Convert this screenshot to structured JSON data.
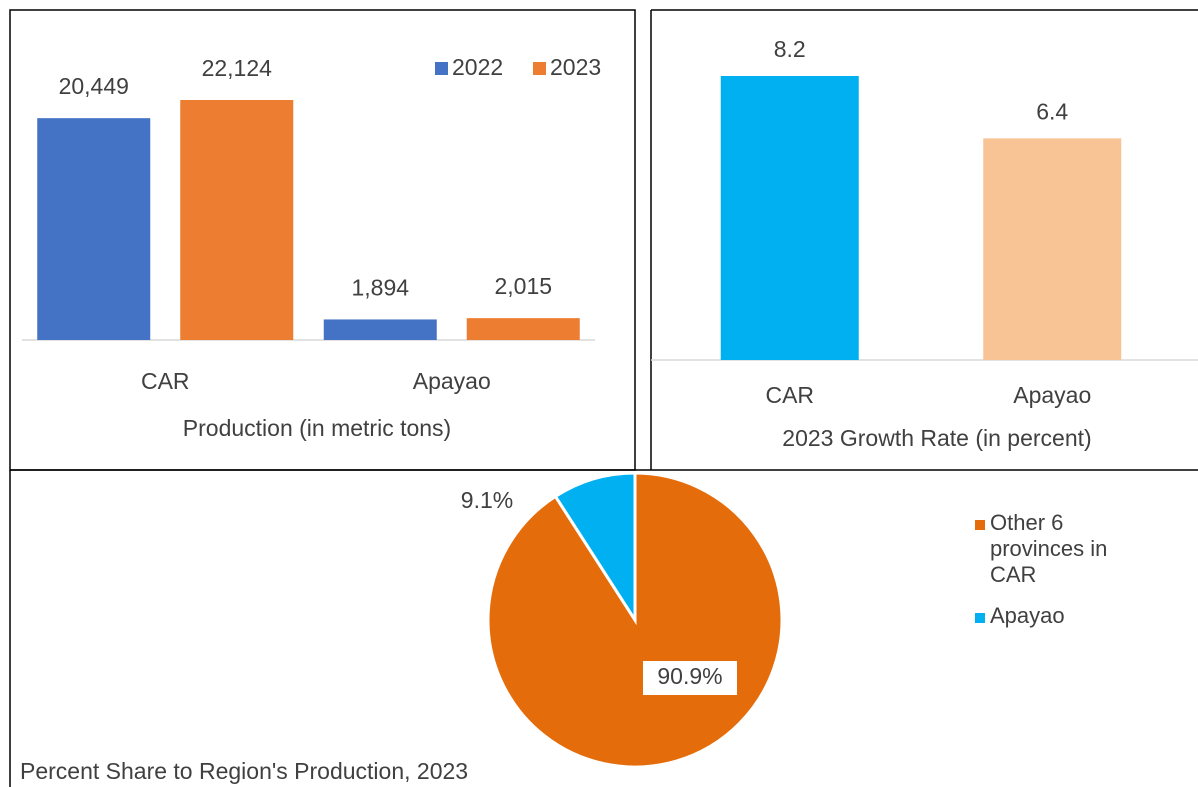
{
  "chart_data": [
    {
      "type": "bar",
      "title": "Production (in metric tons)",
      "categories": [
        "CAR",
        "Apayao"
      ],
      "series": [
        {
          "name": "2022",
          "color": "#4472c4",
          "values": [
            20449,
            1894
          ],
          "value_labels": [
            "20,449",
            "1,894"
          ]
        },
        {
          "name": "2023",
          "color": "#ed7d31",
          "values": [
            22124,
            2015
          ],
          "value_labels": [
            "22,124",
            "2,015"
          ]
        }
      ],
      "legend": "top-right"
    },
    {
      "type": "bar",
      "title": "2023 Growth Rate (in percent)",
      "categories": [
        "CAR",
        "Apayao"
      ],
      "values": [
        8.2,
        6.4
      ],
      "colors": [
        "#00b0f0",
        "#f8c395"
      ]
    },
    {
      "type": "pie",
      "title": "Percent Share to Region's Production, 2023",
      "categories": [
        "Other 6 provinces in CAR",
        "Apayao"
      ],
      "values": [
        90.9,
        9.1
      ],
      "value_labels": [
        "90.9%",
        "9.1%"
      ],
      "colors": [
        "#e46c0a",
        "#00b0f0"
      ],
      "legend": "right"
    }
  ]
}
